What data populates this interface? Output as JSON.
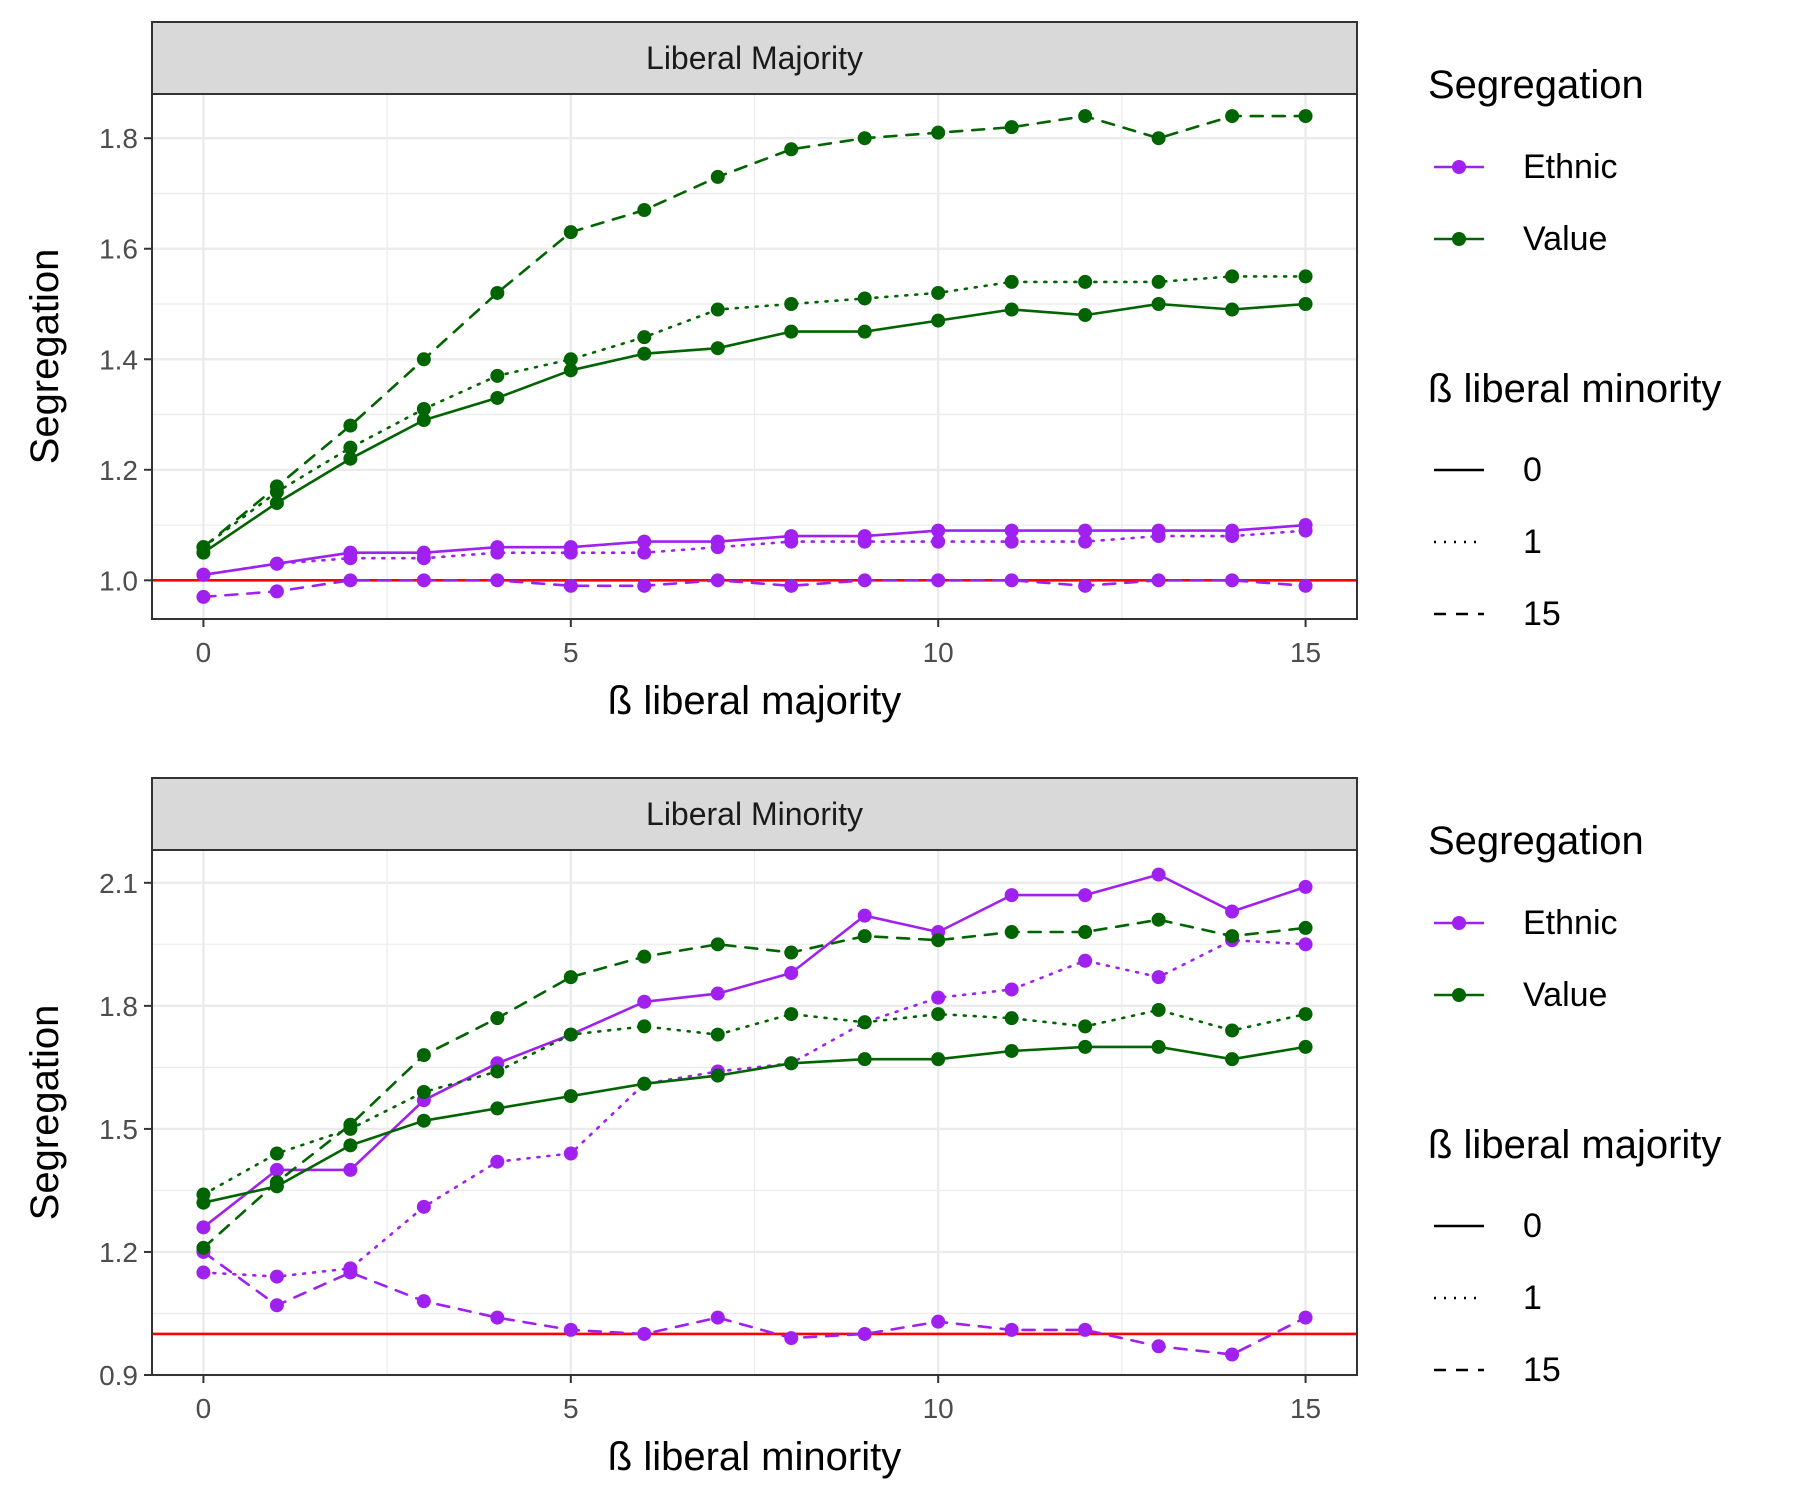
{
  "colors": {
    "ethnic": "#a020f0",
    "value": "#006400",
    "reference": "#ff0000",
    "strip_bg": "#d9d9d9",
    "grid": "#ebebeb"
  },
  "chart_data": [
    {
      "type": "line",
      "strip_title": "Liberal Majority",
      "xlabel": "ß liberal majority",
      "ylabel": "Segregation",
      "xlim": [
        -0.7,
        15.7
      ],
      "ylim": [
        0.93,
        1.88
      ],
      "x_ticks": [
        0,
        5,
        10,
        15
      ],
      "y_ticks": [
        1.0,
        1.2,
        1.4,
        1.6,
        1.8
      ],
      "y_tick_labels": [
        "1.0",
        "1.2",
        "1.4",
        "1.6",
        "1.8"
      ],
      "grid": true,
      "reference_line": 1.0,
      "legend": {
        "placement": "right",
        "color_title": "Segregation",
        "color_entries": [
          "Ethnic",
          "Value"
        ],
        "linetype_title": "ß liberal minority",
        "linetype_entries": [
          "0",
          "1",
          "15"
        ]
      },
      "x": [
        0,
        1,
        2,
        3,
        4,
        5,
        6,
        7,
        8,
        9,
        10,
        11,
        12,
        13,
        14,
        15
      ],
      "series": [
        {
          "group": "Value",
          "linetype": "15",
          "values": [
            1.06,
            1.17,
            1.28,
            1.4,
            1.52,
            1.63,
            1.67,
            1.73,
            1.78,
            1.8,
            1.81,
            1.82,
            1.84,
            1.8,
            1.84,
            1.84
          ]
        },
        {
          "group": "Value",
          "linetype": "1",
          "values": [
            1.06,
            1.16,
            1.24,
            1.31,
            1.37,
            1.4,
            1.44,
            1.49,
            1.5,
            1.51,
            1.52,
            1.54,
            1.54,
            1.54,
            1.55,
            1.55
          ]
        },
        {
          "group": "Value",
          "linetype": "0",
          "values": [
            1.05,
            1.14,
            1.22,
            1.29,
            1.33,
            1.38,
            1.41,
            1.42,
            1.45,
            1.45,
            1.47,
            1.49,
            1.48,
            1.5,
            1.49,
            1.5
          ]
        },
        {
          "group": "Ethnic",
          "linetype": "0",
          "values": [
            1.01,
            1.03,
            1.05,
            1.05,
            1.06,
            1.06,
            1.07,
            1.07,
            1.08,
            1.08,
            1.09,
            1.09,
            1.09,
            1.09,
            1.09,
            1.1
          ]
        },
        {
          "group": "Ethnic",
          "linetype": "1",
          "values": [
            1.01,
            1.03,
            1.04,
            1.04,
            1.05,
            1.05,
            1.05,
            1.06,
            1.07,
            1.07,
            1.07,
            1.07,
            1.07,
            1.08,
            1.08,
            1.09
          ]
        },
        {
          "group": "Ethnic",
          "linetype": "15",
          "values": [
            0.97,
            0.98,
            1.0,
            1.0,
            1.0,
            0.99,
            0.99,
            1.0,
            0.99,
            1.0,
            1.0,
            1.0,
            0.99,
            1.0,
            1.0,
            0.99
          ]
        }
      ]
    },
    {
      "type": "line",
      "strip_title": "Liberal Minority",
      "xlabel": "ß liberal minority",
      "ylabel": "Segregation",
      "xlim": [
        -0.7,
        15.7
      ],
      "ylim": [
        0.9,
        2.18
      ],
      "x_ticks": [
        0,
        5,
        10,
        15
      ],
      "y_ticks": [
        0.9,
        1.2,
        1.5,
        1.8,
        2.1
      ],
      "y_tick_labels": [
        "0.9",
        "1.2",
        "1.5",
        "1.8",
        "2.1"
      ],
      "grid": true,
      "reference_line": 1.0,
      "legend": {
        "placement": "right",
        "color_title": "Segregation",
        "color_entries": [
          "Ethnic",
          "Value"
        ],
        "linetype_title": "ß liberal majority",
        "linetype_entries": [
          "0",
          "1",
          "15"
        ]
      },
      "x": [
        0,
        1,
        2,
        3,
        4,
        5,
        6,
        7,
        8,
        9,
        10,
        11,
        12,
        13,
        14,
        15
      ],
      "series": [
        {
          "group": "Ethnic",
          "linetype": "0",
          "values": [
            1.26,
            1.4,
            1.4,
            1.57,
            1.66,
            1.73,
            1.81,
            1.83,
            1.88,
            2.02,
            1.98,
            2.07,
            2.07,
            2.12,
            2.03,
            2.09
          ]
        },
        {
          "group": "Ethnic",
          "linetype": "1",
          "values": [
            1.15,
            1.14,
            1.16,
            1.31,
            1.42,
            1.44,
            1.61,
            1.64,
            1.66,
            1.76,
            1.82,
            1.84,
            1.91,
            1.87,
            1.96,
            1.95
          ]
        },
        {
          "group": "Ethnic",
          "linetype": "15",
          "values": [
            1.2,
            1.07,
            1.15,
            1.08,
            1.04,
            1.01,
            1.0,
            1.04,
            0.99,
            1.0,
            1.03,
            1.01,
            1.01,
            0.97,
            0.95,
            1.04
          ]
        },
        {
          "group": "Value",
          "linetype": "0",
          "values": [
            1.32,
            1.36,
            1.46,
            1.52,
            1.55,
            1.58,
            1.61,
            1.63,
            1.66,
            1.67,
            1.67,
            1.69,
            1.7,
            1.7,
            1.67,
            1.7
          ]
        },
        {
          "group": "Value",
          "linetype": "1",
          "values": [
            1.34,
            1.44,
            1.5,
            1.59,
            1.64,
            1.73,
            1.75,
            1.73,
            1.78,
            1.76,
            1.78,
            1.77,
            1.75,
            1.79,
            1.74,
            1.78
          ]
        },
        {
          "group": "Value",
          "linetype": "15",
          "values": [
            1.21,
            1.37,
            1.51,
            1.68,
            1.77,
            1.87,
            1.92,
            1.95,
            1.93,
            1.97,
            1.96,
            1.98,
            1.98,
            2.01,
            1.97,
            1.99
          ]
        }
      ]
    }
  ]
}
